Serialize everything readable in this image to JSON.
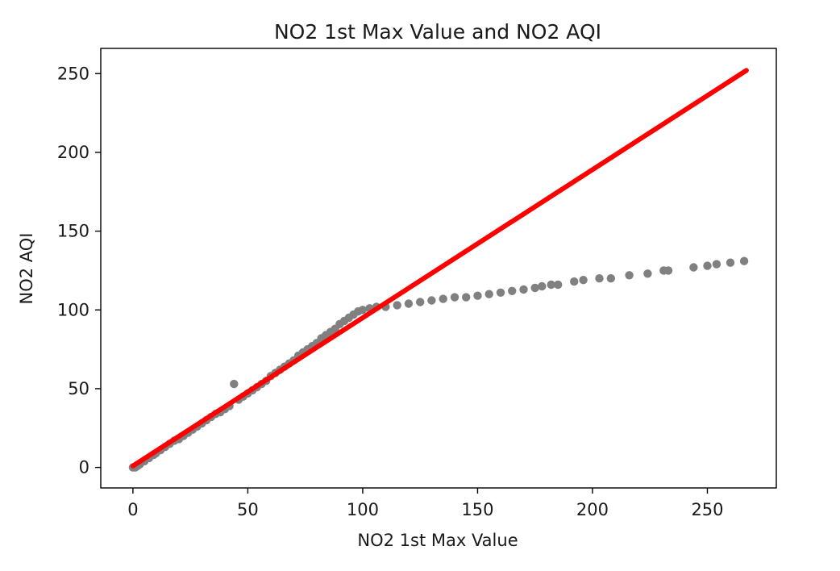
{
  "chart_data": {
    "type": "scatter",
    "title": "NO2 1st Max Value and NO2 AQI",
    "xlabel": "NO2 1st Max Value",
    "ylabel": "NO2 AQI",
    "xlim": [
      -14,
      280
    ],
    "ylim": [
      -13,
      266
    ],
    "xticks": [
      0,
      50,
      100,
      150,
      200,
      250
    ],
    "yticks": [
      0,
      50,
      100,
      150,
      200,
      250
    ],
    "xtick_labels": [
      "0",
      "50",
      "100",
      "150",
      "200",
      "250"
    ],
    "ytick_labels": [
      "0",
      "50",
      "100",
      "150",
      "200",
      "250"
    ],
    "grid": false,
    "series": [
      {
        "kind": "scatter",
        "color": "#808080",
        "points": [
          [
            0,
            0
          ],
          [
            1,
            0
          ],
          [
            2,
            1
          ],
          [
            3,
            2
          ],
          [
            5,
            4
          ],
          [
            7,
            6
          ],
          [
            9,
            8
          ],
          [
            10,
            9
          ],
          [
            12,
            11
          ],
          [
            14,
            13
          ],
          [
            16,
            15
          ],
          [
            18,
            17
          ],
          [
            20,
            18
          ],
          [
            22,
            20
          ],
          [
            24,
            22
          ],
          [
            26,
            24
          ],
          [
            28,
            26
          ],
          [
            30,
            28
          ],
          [
            32,
            30
          ],
          [
            34,
            32
          ],
          [
            36,
            34
          ],
          [
            38,
            35
          ],
          [
            40,
            37
          ],
          [
            42,
            39
          ],
          [
            44,
            53
          ],
          [
            46,
            43
          ],
          [
            48,
            45
          ],
          [
            50,
            47
          ],
          [
            52,
            49
          ],
          [
            54,
            51
          ],
          [
            56,
            53
          ],
          [
            58,
            55
          ],
          [
            60,
            58
          ],
          [
            62,
            60
          ],
          [
            64,
            62
          ],
          [
            66,
            64
          ],
          [
            68,
            66
          ],
          [
            70,
            68
          ],
          [
            72,
            71
          ],
          [
            74,
            73
          ],
          [
            76,
            75
          ],
          [
            78,
            77
          ],
          [
            80,
            79
          ],
          [
            82,
            82
          ],
          [
            84,
            84
          ],
          [
            86,
            86
          ],
          [
            88,
            88
          ],
          [
            90,
            91
          ],
          [
            92,
            93
          ],
          [
            94,
            95
          ],
          [
            96,
            97
          ],
          [
            98,
            99
          ],
          [
            100,
            100
          ],
          [
            103,
            101
          ],
          [
            106,
            102
          ],
          [
            110,
            102
          ],
          [
            115,
            103
          ],
          [
            120,
            104
          ],
          [
            125,
            105
          ],
          [
            130,
            106
          ],
          [
            135,
            107
          ],
          [
            140,
            108
          ],
          [
            145,
            108
          ],
          [
            150,
            109
          ],
          [
            155,
            110
          ],
          [
            160,
            111
          ],
          [
            165,
            112
          ],
          [
            170,
            113
          ],
          [
            175,
            114
          ],
          [
            178,
            115
          ],
          [
            182,
            116
          ],
          [
            185,
            116
          ],
          [
            192,
            118
          ],
          [
            196,
            119
          ],
          [
            203,
            120
          ],
          [
            208,
            120
          ],
          [
            216,
            122
          ],
          [
            224,
            123
          ],
          [
            231,
            125
          ],
          [
            233,
            125
          ],
          [
            244,
            127
          ],
          [
            250,
            128
          ],
          [
            254,
            129
          ],
          [
            260,
            130
          ],
          [
            266,
            131
          ]
        ]
      },
      {
        "kind": "line",
        "color": "#ff0000",
        "points": [
          [
            0,
            1
          ],
          [
            267,
            252
          ]
        ]
      }
    ]
  }
}
